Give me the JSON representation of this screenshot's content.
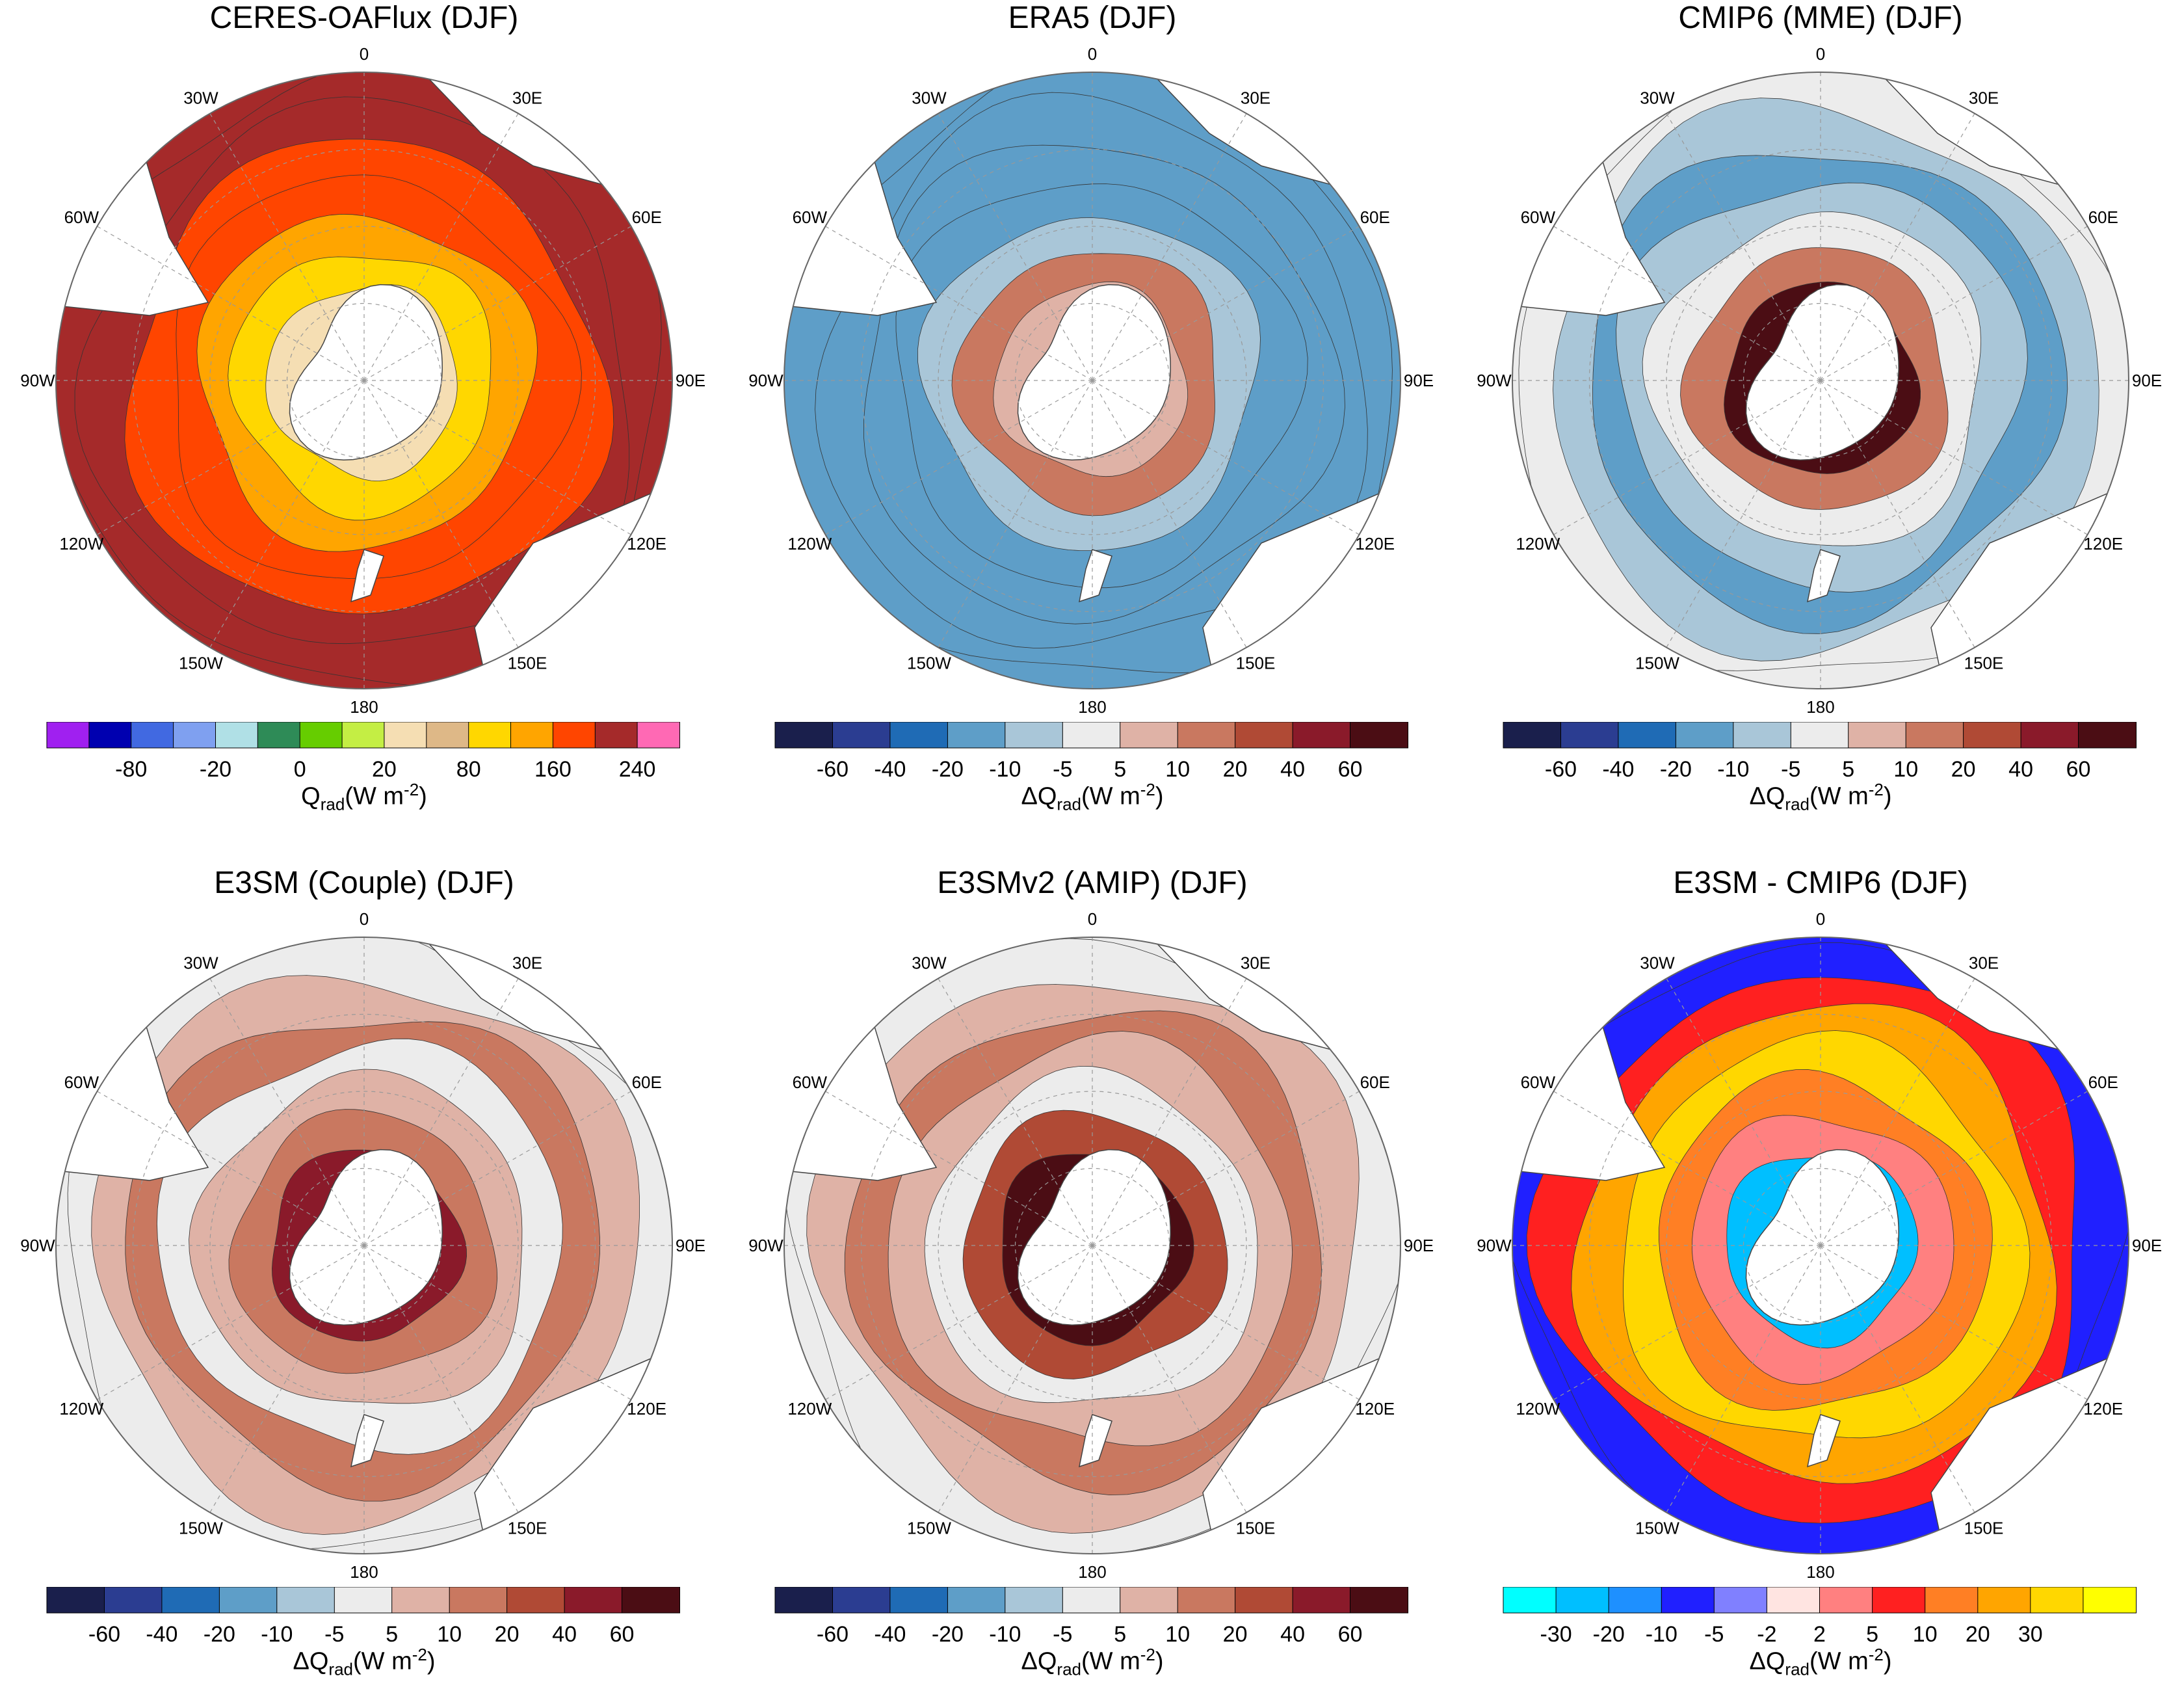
{
  "figure": {
    "panels": [
      {
        "id": "ceres",
        "title": "CERES-OAFlux  (DJF)",
        "scheme": "abs",
        "colorbar": {
          "colors": [
            "#a020f0",
            "#0000b0",
            "#4169e1",
            "#7fa0f0",
            "#b0e0e6",
            "#2e8b57",
            "#66cd00",
            "#c4ee44",
            "#f5deb3",
            "#deb887",
            "#ffd700",
            "#ffa500",
            "#ff4500",
            "#a52a2a",
            "#ff69b4"
          ],
          "ticks": [
            "-80",
            "-20",
            "0",
            "20",
            "80",
            "160",
            "240"
          ],
          "tick_boundaries": [
            2,
            4,
            6,
            8,
            10,
            12,
            14
          ],
          "label_main": "Q",
          "label_sub": "rad",
          "label_units": "(W m",
          "label_sup": "-2",
          "label_close": ")"
        }
      },
      {
        "id": "era5",
        "title": "ERA5  (DJF)",
        "scheme": "diff",
        "colorbar": {
          "colors": [
            "#1a1f4c",
            "#2b3d91",
            "#1f6bb5",
            "#5e9ec8",
            "#a9c6d8",
            "#ececec",
            "#dfb2a6",
            "#c97860",
            "#b04a35",
            "#8a1a2a",
            "#4b0d14"
          ],
          "ticks": [
            "-60",
            "-40",
            "-20",
            "-10",
            "-5",
            "5",
            "10",
            "20",
            "40",
            "60"
          ],
          "tick_boundaries": [
            1,
            2,
            3,
            4,
            5,
            6,
            7,
            8,
            9,
            10
          ],
          "label_main": "ΔQ",
          "label_sub": "rad",
          "label_units": "(W m",
          "label_sup": "-2",
          "label_close": ")"
        }
      },
      {
        "id": "cmip6",
        "title": "CMIP6 (MME)  (DJF)",
        "scheme": "diff",
        "colorbar": {
          "colors": [
            "#1a1f4c",
            "#2b3d91",
            "#1f6bb5",
            "#5e9ec8",
            "#a9c6d8",
            "#ececec",
            "#dfb2a6",
            "#c97860",
            "#b04a35",
            "#8a1a2a",
            "#4b0d14"
          ],
          "ticks": [
            "-60",
            "-40",
            "-20",
            "-10",
            "-5",
            "5",
            "10",
            "20",
            "40",
            "60"
          ],
          "tick_boundaries": [
            1,
            2,
            3,
            4,
            5,
            6,
            7,
            8,
            9,
            10
          ],
          "label_main": "ΔQ",
          "label_sub": "rad",
          "label_units": "(W m",
          "label_sup": "-2",
          "label_close": ")"
        }
      },
      {
        "id": "e3sm-couple",
        "title": "E3SM (Couple)  (DJF)",
        "scheme": "diff",
        "colorbar": {
          "colors": [
            "#1a1f4c",
            "#2b3d91",
            "#1f6bb5",
            "#5e9ec8",
            "#a9c6d8",
            "#ececec",
            "#dfb2a6",
            "#c97860",
            "#b04a35",
            "#8a1a2a",
            "#4b0d14"
          ],
          "ticks": [
            "-60",
            "-40",
            "-20",
            "-10",
            "-5",
            "5",
            "10",
            "20",
            "40",
            "60"
          ],
          "tick_boundaries": [
            1,
            2,
            3,
            4,
            5,
            6,
            7,
            8,
            9,
            10
          ],
          "label_main": "ΔQ",
          "label_sub": "rad",
          "label_units": "(W m",
          "label_sup": "-2",
          "label_close": ")"
        }
      },
      {
        "id": "e3smv2-amip",
        "title": "E3SMv2 (AMIP)  (DJF)",
        "scheme": "diff",
        "colorbar": {
          "colors": [
            "#1a1f4c",
            "#2b3d91",
            "#1f6bb5",
            "#5e9ec8",
            "#a9c6d8",
            "#ececec",
            "#dfb2a6",
            "#c97860",
            "#b04a35",
            "#8a1a2a",
            "#4b0d14"
          ],
          "ticks": [
            "-60",
            "-40",
            "-20",
            "-10",
            "-5",
            "5",
            "10",
            "20",
            "40",
            "60"
          ],
          "tick_boundaries": [
            1,
            2,
            3,
            4,
            5,
            6,
            7,
            8,
            9,
            10
          ],
          "label_main": "ΔQ",
          "label_sub": "rad",
          "label_units": "(W m",
          "label_sup": "-2",
          "label_close": ")"
        }
      },
      {
        "id": "e3sm-minus-cmip6",
        "title": "E3SM - CMIP6  (DJF)",
        "scheme": "diff2",
        "colorbar": {
          "colors": [
            "#00ffff",
            "#00bfff",
            "#1e90ff",
            "#2020ff",
            "#8080ff",
            "#ffe4e1",
            "#ff8080",
            "#ff2020",
            "#ff7f24",
            "#ffa500",
            "#ffd700",
            "#ffff00"
          ],
          "ticks": [
            "-30",
            "-20",
            "-10",
            "-5",
            "-2",
            "2",
            "5",
            "10",
            "20",
            "30"
          ],
          "tick_boundaries": [
            1,
            2,
            3,
            4,
            5,
            6,
            7,
            8,
            9,
            10
          ],
          "label_main": "ΔQ",
          "label_sub": "rad",
          "label_units": "(W m",
          "label_sup": "-2",
          "label_close": ")"
        }
      }
    ],
    "longitude_labels": [
      "0",
      "30E",
      "60E",
      "90E",
      "120E",
      "150E",
      "180",
      "150W",
      "120W",
      "90W",
      "60W",
      "30W"
    ]
  }
}
